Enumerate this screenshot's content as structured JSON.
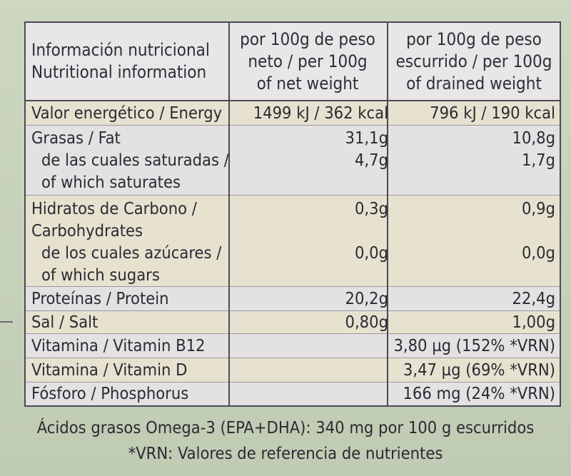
{
  "header": {
    "col1": [
      "Información nutricional",
      "Nutritional information"
    ],
    "col2": [
      "por 100g de peso",
      "neto / per 100g",
      "of net weight"
    ],
    "col3": [
      "por 100g de peso",
      "escurrido / per 100g",
      "of drained weight"
    ]
  },
  "rows": [
    {
      "label": [
        "Valor energético / Energy"
      ],
      "net": [
        "1499 kJ / 362 kcal"
      ],
      "drained": [
        "796 kJ / 190 kcal"
      ]
    },
    {
      "label": [
        "Grasas / Fat",
        "de las cuales saturadas /",
        "of which saturates"
      ],
      "net": [
        "31,1g",
        "4,7g"
      ],
      "drained": [
        "10,8g",
        "1,7g"
      ]
    },
    {
      "label": [
        "Hidratos de Carbono /",
        "Carbohydrates",
        "de los cuales azúcares /",
        "of which sugars"
      ],
      "net": [
        "0,3g",
        "",
        "0,0g"
      ],
      "drained": [
        "0,9g",
        "",
        "0,0g"
      ]
    },
    {
      "label": [
        "Proteínas / Protein"
      ],
      "net": [
        "20,2g"
      ],
      "drained": [
        "22,4g"
      ]
    },
    {
      "label": [
        "Sal / Salt"
      ],
      "net": [
        "0,80g"
      ],
      "drained": [
        "1,00g"
      ]
    },
    {
      "label": [
        "Vitamina / Vitamin B12"
      ],
      "net": [
        ""
      ],
      "drained": [
        "3,80 µg (152% *VRN)"
      ]
    },
    {
      "label": [
        "Vitamina / Vitamin D"
      ],
      "net": [
        ""
      ],
      "drained": [
        "3,47 µg (69% *VRN)"
      ]
    },
    {
      "label": [
        "Fósforo / Phosphorus"
      ],
      "net": [
        ""
      ],
      "drained": [
        "166 mg (24% *VRN)"
      ]
    }
  ],
  "footer": {
    "omega": "Ácidos grasos Omega-3 (EPA+DHA): 340 mg por 100 g escurridos",
    "vrn": "*VRN: Valores de referencia de nutrientes"
  }
}
